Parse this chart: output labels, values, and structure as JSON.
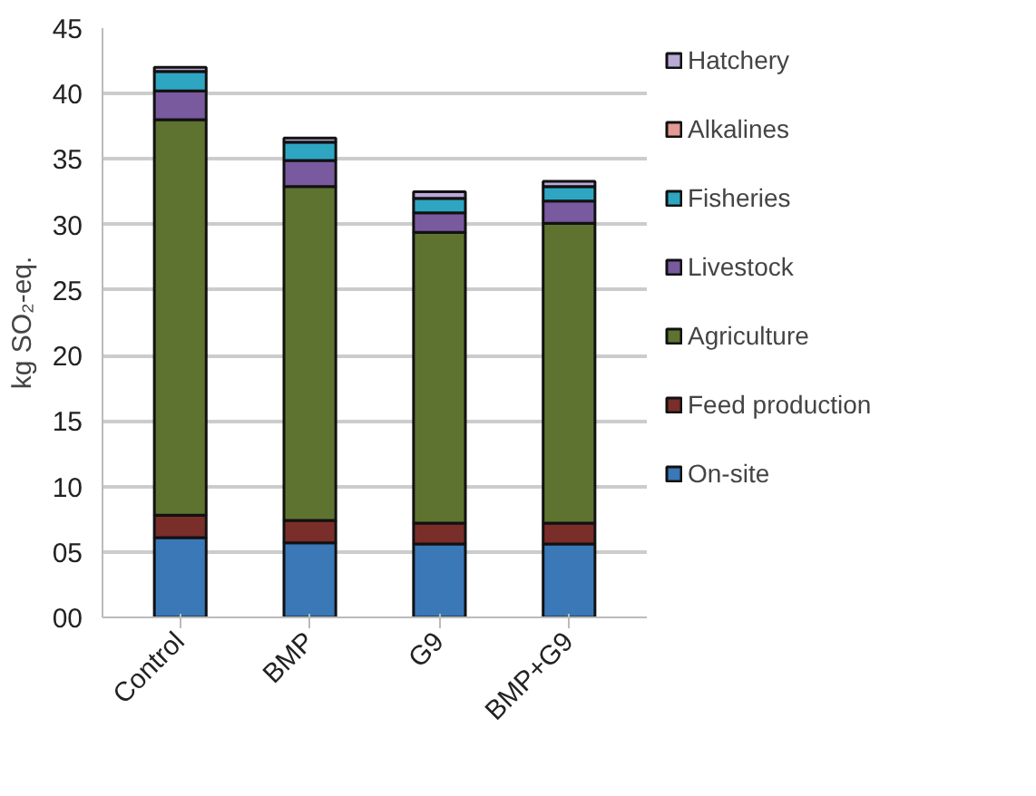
{
  "chart_data": {
    "type": "bar",
    "stacked": true,
    "ylabel": "kg SO₂-eq.",
    "categories": [
      "Control",
      "BMP",
      "G9",
      "BMP+G9"
    ],
    "series": [
      {
        "name": "On-site",
        "color": "#3a78b8",
        "values": [
          6.1,
          5.7,
          5.6,
          5.6
        ]
      },
      {
        "name": "Feed production",
        "color": "#7a2e2a",
        "values": [
          1.7,
          1.7,
          1.6,
          1.6
        ]
      },
      {
        "name": "Agriculture",
        "color": "#5f7330",
        "values": [
          30.2,
          25.5,
          22.2,
          22.9
        ]
      },
      {
        "name": "Livestock",
        "color": "#7a5a9e",
        "values": [
          2.2,
          2.0,
          1.5,
          1.7
        ]
      },
      {
        "name": "Fisheries",
        "color": "#2ea6c2",
        "values": [
          1.5,
          1.4,
          1.1,
          1.1
        ]
      },
      {
        "name": "Alkalines",
        "color": "#e39a93",
        "values": [
          null,
          null,
          null,
          null
        ]
      },
      {
        "name": "Hatchery",
        "color": "#b9a9d6",
        "values": [
          0.3,
          0.3,
          0.5,
          0.4
        ]
      }
    ],
    "ylim": [
      0,
      45
    ],
    "yticks": [
      {
        "value": 0,
        "label": "00"
      },
      {
        "value": 5,
        "label": "05"
      },
      10,
      15,
      20,
      25,
      30,
      35,
      40,
      45
    ],
    "grid": "y",
    "legend": "right"
  }
}
